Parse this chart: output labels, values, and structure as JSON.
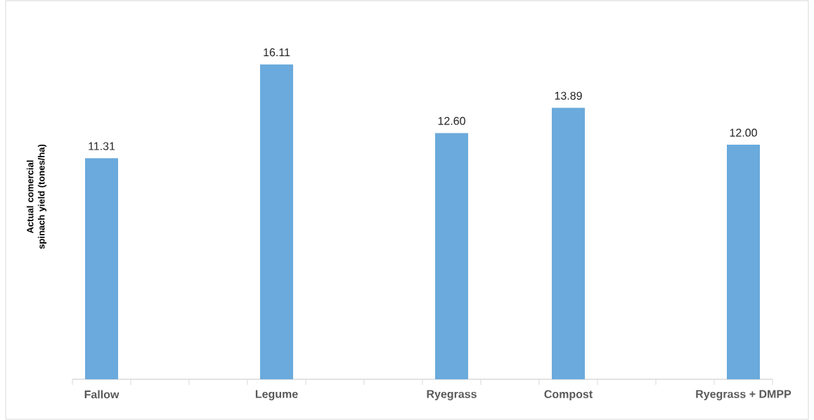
{
  "chart_data": {
    "type": "bar",
    "ylabel": "Actual comercial spinach yield (tones/ha)",
    "categories": [
      "Fallow",
      null,
      null,
      "Legume",
      null,
      null,
      "Ryegrass",
      null,
      "Compost",
      null,
      null,
      "Ryegrass + DMPP"
    ],
    "values": [
      11.31,
      null,
      null,
      16.11,
      null,
      null,
      12.6,
      null,
      13.89,
      null,
      null,
      12.0
    ],
    "value_labels": [
      "11.31",
      null,
      null,
      "16.11",
      null,
      null,
      "12.60",
      null,
      "13.89",
      null,
      null,
      "12.00"
    ],
    "color": "#6aaadc"
  }
}
